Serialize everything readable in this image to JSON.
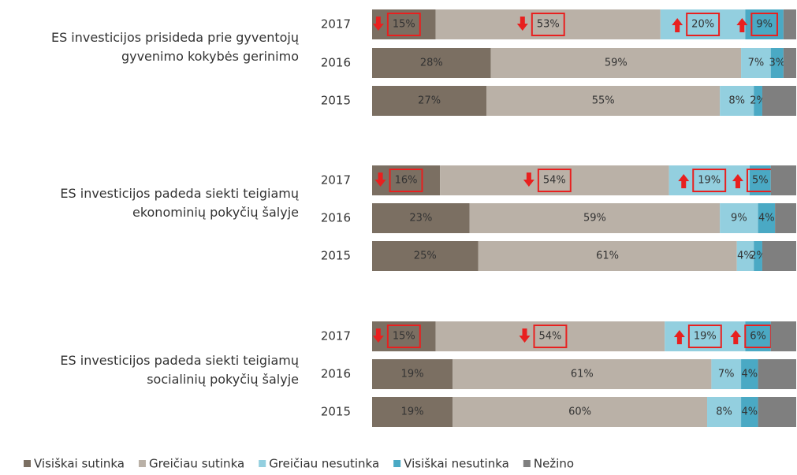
{
  "chart_data": {
    "type": "bar",
    "orientation": "horizontal",
    "stacked": true,
    "xlim": [
      0,
      100
    ],
    "groups": [
      {
        "label": "ES investicijos prisideda prie gyventojų gyvenimo kokybės gerinimo",
        "categories": [
          "2017",
          "2016",
          "2015"
        ]
      },
      {
        "label": "ES investicijos padeda siekti teigiamų ekonominių pokyčių šalyje",
        "categories": [
          "2017",
          "2016",
          "2015"
        ]
      },
      {
        "label": "ES investicijos padeda siekti teigiamų socialinių pokyčių šalyje",
        "categories": [
          "2017",
          "2016",
          "2015"
        ]
      }
    ],
    "series": [
      {
        "name": "Visiškai sutinka",
        "color": "#7b6f62",
        "values": [
          15,
          28,
          27,
          16,
          23,
          25,
          15,
          19,
          19
        ],
        "value_labels": [
          "15%",
          "28%",
          "27%",
          "16%",
          "23%",
          "25%",
          "15%",
          "19%",
          "19%"
        ]
      },
      {
        "name": "Greičiau sutinka",
        "color": "#bab1a7",
        "values": [
          53,
          59,
          55,
          54,
          59,
          61,
          54,
          61,
          60
        ],
        "value_labels": [
          "53%",
          "59%",
          "55%",
          "54%",
          "59%",
          "61%",
          "54%",
          "61%",
          "60%"
        ]
      },
      {
        "name": "Greičiau nesutinka",
        "color": "#93cfdf",
        "values": [
          20,
          7,
          8,
          19,
          9,
          4,
          19,
          7,
          8
        ],
        "value_labels": [
          "20%",
          "7%",
          "8%",
          "19%",
          "9%",
          "4%",
          "19%",
          "7%",
          "8%"
        ]
      },
      {
        "name": "Visiškai nesutinka",
        "color": "#4aa9c4",
        "values": [
          9,
          3,
          2,
          5,
          4,
          2,
          6,
          4,
          4
        ],
        "value_labels": [
          "9%",
          "3%",
          "2%",
          "5%",
          "4%",
          "2%",
          "6%",
          "4%",
          "4%"
        ]
      },
      {
        "name": "Nežino",
        "color": "#7f7f7f",
        "values": [
          3,
          3,
          8,
          6,
          5,
          8,
          6,
          9,
          9
        ]
      }
    ]
  }
}
